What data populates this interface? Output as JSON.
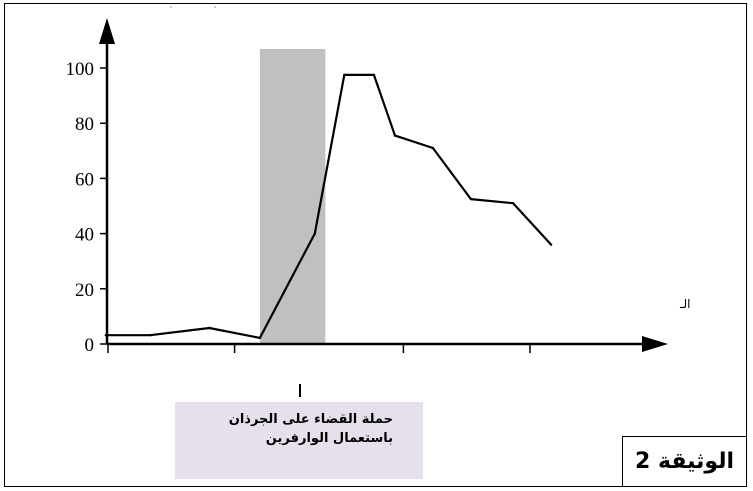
{
  "chart_data": {
    "type": "line",
    "title": "",
    "xlabel": "",
    "ylabel": "",
    "ylim": [
      0,
      100
    ],
    "y_ticks": [
      0,
      20,
      40,
      60,
      80,
      100
    ],
    "xlim": [
      0,
      10
    ],
    "x_ticks": [
      0,
      3,
      7,
      10
    ],
    "grid": false,
    "series": [
      {
        "color": "#000000",
        "points": [
          [
            -0.05,
            3.2
          ],
          [
            1,
            3.2
          ],
          [
            2.4,
            5.8
          ],
          [
            3.6,
            2.2
          ],
          [
            4.9,
            40
          ],
          [
            5.6,
            97.5
          ],
          [
            6.3,
            97.5
          ],
          [
            6.8,
            75.5
          ],
          [
            7.7,
            71
          ],
          [
            8.6,
            52.5
          ],
          [
            9.6,
            51
          ],
          [
            10.5,
            36
          ]
        ]
      }
    ],
    "shaded_region": {
      "x_start": 3.6,
      "x_end": 5.15,
      "color": "#c0c0c0"
    }
  },
  "callout": {
    "line1": "حملة القضاء على الجرذان",
    "line2": "باستعمال الوارفرين",
    "background": "#e6e0ec"
  },
  "document_label": "الوثيقة 2",
  "fragments": {
    "top": "'  '",
    "right": "الـ"
  }
}
